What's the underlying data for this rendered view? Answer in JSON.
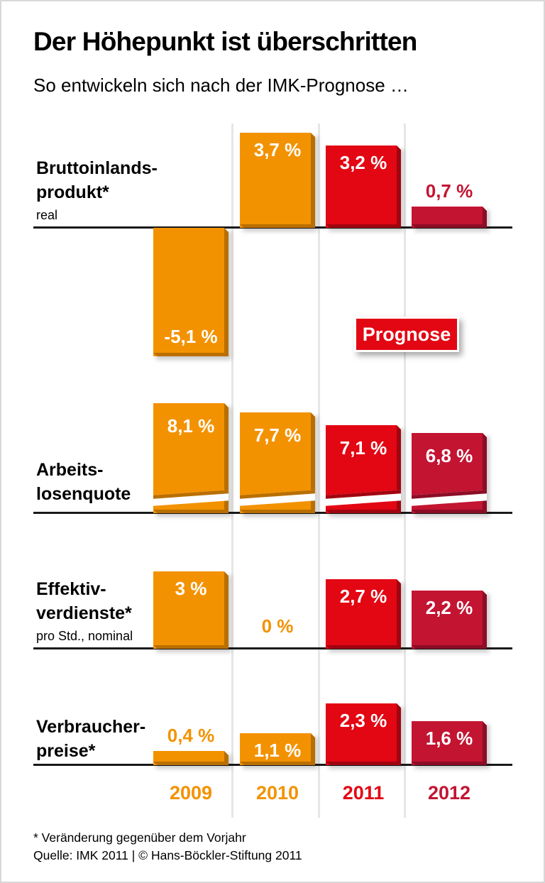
{
  "header": {
    "title": "Der Höhepunkt ist überschritten",
    "subtitle": "So entwickeln sich nach der IMK-Prognose …"
  },
  "prognose_badge": "Prognose",
  "footnotes": {
    "line1": "* Veränderung gegenüber dem Vorjahr",
    "line2": "Quelle: IMK 2011 | © Hans-Böckler-Stiftung 2011"
  },
  "chart_data": {
    "type": "bar",
    "title": "Der Höhepunkt ist überschritten",
    "subtitle": "So entwickeln sich nach der IMK-Prognose …",
    "unit": "% (Veränderung gegenüber dem Vorjahr)",
    "categories": [
      "2009",
      "2010",
      "2011",
      "2012"
    ],
    "category_colors": [
      "#F39200",
      "#F39200",
      "#E30613",
      "#C31432"
    ],
    "category_edge_colors": [
      "#B96F00",
      "#B96F00",
      "#A00410",
      "#8C0D26"
    ],
    "forecast_years": [
      "2011",
      "2012"
    ],
    "legend": "Prognose",
    "grid": "vertical column separators",
    "series": [
      {
        "name": "Bruttoinlandsprodukt* (real)",
        "label_lines": [
          "Bruttoinlands-",
          "produkt*"
        ],
        "sublabel": "real",
        "values": [
          -5.1,
          3.7,
          3.2,
          0.7
        ],
        "value_labels": [
          "-5,1 %",
          "3,7 %",
          "3,2 %",
          "0,7 %"
        ]
      },
      {
        "name": "Arbeitslosenquote",
        "label_lines": [
          "Arbeits-",
          "losenquote"
        ],
        "sublabel": "",
        "values": [
          8.1,
          7.7,
          7.1,
          6.8
        ],
        "value_labels": [
          "8,1 %",
          "7,7 %",
          "7,1 %",
          "6,8 %"
        ],
        "broken_axis": true
      },
      {
        "name": "Effektivverdienste* (pro Std., nominal)",
        "label_lines": [
          "Effektiv-",
          "verdienste*"
        ],
        "sublabel": "pro Std., nominal",
        "values": [
          3,
          0,
          2.7,
          2.2
        ],
        "value_labels": [
          "3 %",
          "0 %",
          "2,7 %",
          "2,2 %"
        ]
      },
      {
        "name": "Verbraucherpreise*",
        "label_lines": [
          "Verbraucher-",
          "preise*"
        ],
        "sublabel": "",
        "values": [
          0.4,
          1.1,
          2.3,
          1.6
        ],
        "value_labels": [
          "0,4 %",
          "1,1 %",
          "2,3 %",
          "1,6 %"
        ]
      }
    ]
  }
}
